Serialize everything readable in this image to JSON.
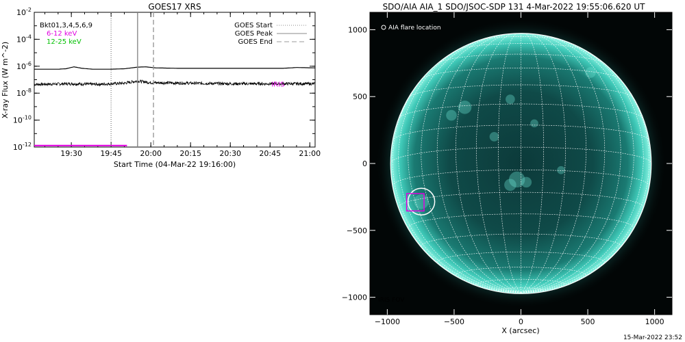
{
  "chart_data": [
    {
      "type": "line",
      "title": "GOES17 XRS",
      "xlabel": "Start Time (04-Mar-22 19:16:00)",
      "ylabel": "X-ray Flux (W m^-2)",
      "yscale": "log",
      "xlim": [
        "19:16",
        "21:02"
      ],
      "ylim": [
        1e-12,
        0.01
      ],
      "x_ticks": [
        "19:30",
        "19:45",
        "20:00",
        "20:15",
        "20:30",
        "20:45",
        "21:00"
      ],
      "y_ticks": [
        {
          "value": 1e-12,
          "label": "10^-12"
        },
        {
          "value": 1e-10,
          "label": "10^-10"
        },
        {
          "value": 1e-08,
          "label": "10^-8"
        },
        {
          "value": 1e-06,
          "label": "10^-6"
        },
        {
          "value": 0.0001,
          "label": "10^-4"
        },
        {
          "value": 0.01,
          "label": "10^-2"
        }
      ],
      "legend_left": {
        "heading": "Bkt01,3,4,5,6,9",
        "items": [
          {
            "name": "6-12 keV",
            "color": "#e000e0"
          },
          {
            "name": "12-25 keV",
            "color": "#00c000"
          }
        ]
      },
      "legend_right": [
        {
          "name": "GOES Start",
          "style": "dotted",
          "time": "19:45"
        },
        {
          "name": "GOES Peak",
          "style": "solid",
          "time": "19:55"
        },
        {
          "name": "GOES End",
          "style": "dashed",
          "time": "20:01"
        }
      ],
      "series": [
        {
          "name": "",
          "color": "#000000",
          "points": [
            [
              "19:16",
              6e-07
            ],
            [
              "19:25",
              6e-07
            ],
            [
              "19:28",
              6.5e-07
            ],
            [
              "19:31",
              9e-07
            ],
            [
              "19:34",
              7e-07
            ],
            [
              "19:38",
              6e-07
            ],
            [
              "19:45",
              6e-07
            ],
            [
              "19:50",
              6.5e-07
            ],
            [
              "19:55",
              8.5e-07
            ],
            [
              "19:58",
              9e-07
            ],
            [
              "20:02",
              7.5e-07
            ],
            [
              "20:10",
              7e-07
            ],
            [
              "20:30",
              7e-07
            ],
            [
              "20:50",
              7e-07
            ],
            [
              "20:55",
              8e-07
            ],
            [
              "21:02",
              7.5e-07
            ]
          ]
        },
        {
          "name": "",
          "color": "#000000",
          "noisy": true,
          "points": [
            [
              "19:16",
              4.5e-08
            ],
            [
              "19:30",
              5e-08
            ],
            [
              "19:40",
              4.5e-08
            ],
            [
              "19:50",
              5.5e-08
            ],
            [
              "19:55",
              8e-08
            ],
            [
              "20:00",
              6e-08
            ],
            [
              "20:15",
              5.5e-08
            ],
            [
              "20:30",
              5e-08
            ],
            [
              "20:45",
              5e-08
            ],
            [
              "21:02",
              5e-08
            ]
          ]
        },
        {
          "name": "6-12 keV",
          "color": "#e000e0",
          "points": [
            [
              "19:16",
              1.3e-12
            ],
            [
              "19:51",
              1.3e-12
            ]
          ]
        }
      ],
      "annotation": {
        "text": "IRIS",
        "color": "#e000e0",
        "time": "20:48",
        "flux": 5e-08
      }
    },
    {
      "type": "image",
      "title": "SDO/AIA AIA_1 SDO/JSOC-SDP 131  4-Mar-2022 19:55:06.620 UT",
      "xlabel": "X (arcsec)",
      "ylabel": "",
      "xlim": [
        -1130,
        1130
      ],
      "ylim": [
        -1130,
        1130
      ],
      "x_ticks": [
        -1000,
        -500,
        0,
        500,
        1000
      ],
      "y_ticks": [
        -1000,
        -500,
        0,
        500,
        1000
      ],
      "solar_radius_arcsec": 975,
      "legend_text": "AIA flare location",
      "flare_location": {
        "x": -745,
        "y": -285,
        "r": 100
      },
      "iris_fov": {
        "label": "IRIS FOV",
        "color": "#e000e0",
        "x": -790,
        "y": -290,
        "w": 130,
        "h": 130
      }
    }
  ],
  "footer_timestamp": "15-Mar-2022 23:52"
}
